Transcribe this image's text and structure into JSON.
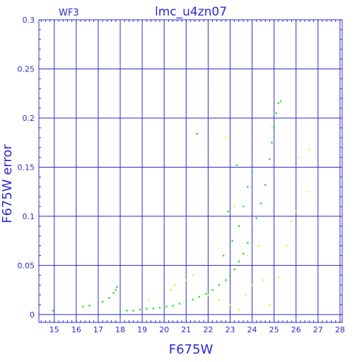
{
  "chart_data": {
    "type": "scatter",
    "title": "lmc_u4zn07",
    "panel_label": "WF3",
    "xlabel": "F675W",
    "ylabel": "F675W error",
    "xlim": [
      14.3,
      28.1
    ],
    "ylim": [
      -0.008,
      0.3
    ],
    "x_ticks": [
      15,
      16,
      17,
      18,
      19,
      20,
      21,
      22,
      23,
      24,
      25,
      26,
      27,
      28
    ],
    "y_ticks": [
      0,
      0.05,
      0.1,
      0.15,
      0.2,
      0.25,
      0.3
    ],
    "y_tick_labels": [
      "0",
      "0.05",
      "0.1",
      "0.15",
      "0.2",
      "0.25",
      "0.3"
    ],
    "grid": true,
    "colors": {
      "frame": "#2b2bcf",
      "grid": "#2b2bcf",
      "main_series": "#22e622",
      "secondary_series": "#f2f22a"
    },
    "series": [
      {
        "color": "#22e622",
        "points": [
          [
            14.95,
            0.004
          ],
          [
            16.3,
            0.008
          ],
          [
            16.6,
            0.009
          ],
          [
            17.2,
            0.013
          ],
          [
            17.5,
            0.017
          ],
          [
            17.7,
            0.022
          ],
          [
            17.8,
            0.025
          ],
          [
            17.85,
            0.028
          ],
          [
            18.0,
            0.003
          ],
          [
            18.3,
            0.004
          ],
          [
            18.6,
            0.004
          ],
          [
            18.9,
            0.005
          ],
          [
            19.2,
            0.006
          ],
          [
            19.5,
            0.006
          ],
          [
            19.8,
            0.007
          ],
          [
            20.1,
            0.008
          ],
          [
            20.4,
            0.009
          ],
          [
            20.7,
            0.011
          ],
          [
            21.0,
            0.013
          ],
          [
            21.3,
            0.015
          ],
          [
            21.6,
            0.018
          ],
          [
            21.9,
            0.021
          ],
          [
            22.2,
            0.025
          ],
          [
            22.5,
            0.03
          ],
          [
            22.8,
            0.035
          ],
          [
            23.0,
            0.04
          ],
          [
            23.2,
            0.046
          ],
          [
            23.4,
            0.054
          ],
          [
            23.6,
            0.062
          ],
          [
            23.8,
            0.073
          ],
          [
            24.0,
            0.085
          ],
          [
            24.2,
            0.098
          ],
          [
            24.4,
            0.113
          ],
          [
            24.6,
            0.132
          ],
          [
            24.8,
            0.158
          ],
          [
            24.9,
            0.175
          ],
          [
            25.0,
            0.19
          ],
          [
            25.1,
            0.205
          ],
          [
            25.2,
            0.215
          ],
          [
            25.3,
            0.217
          ],
          [
            21.5,
            0.184
          ],
          [
            22.7,
            0.06
          ],
          [
            23.1,
            0.075
          ],
          [
            23.4,
            0.09
          ],
          [
            23.6,
            0.11
          ],
          [
            23.8,
            0.13
          ],
          [
            24.0,
            0.145
          ],
          [
            22.9,
            0.105
          ],
          [
            23.3,
            0.152
          ]
        ]
      },
      {
        "color": "#f2f22a",
        "points": [
          [
            19.3,
            0.015
          ],
          [
            20.3,
            0.025
          ],
          [
            20.5,
            0.03
          ],
          [
            21.0,
            0.035
          ],
          [
            21.3,
            0.04
          ],
          [
            22.0,
            0.02
          ],
          [
            22.5,
            0.015
          ],
          [
            23.0,
            0.01
          ],
          [
            23.4,
            0.005
          ],
          [
            23.7,
            0.02
          ],
          [
            24.0,
            0.03
          ],
          [
            24.5,
            0.035
          ],
          [
            24.8,
            0.01
          ],
          [
            25.2,
            0.038
          ],
          [
            25.6,
            0.07
          ],
          [
            25.8,
            0.095
          ],
          [
            26.0,
            0.105
          ],
          [
            26.1,
            0.16
          ],
          [
            26.5,
            0.125
          ],
          [
            26.6,
            0.168
          ],
          [
            23.8,
            0.06
          ],
          [
            24.3,
            0.07
          ],
          [
            23.2,
            0.11
          ],
          [
            22.8,
            0.18
          ],
          [
            24.9,
            0.19
          ]
        ]
      }
    ]
  }
}
